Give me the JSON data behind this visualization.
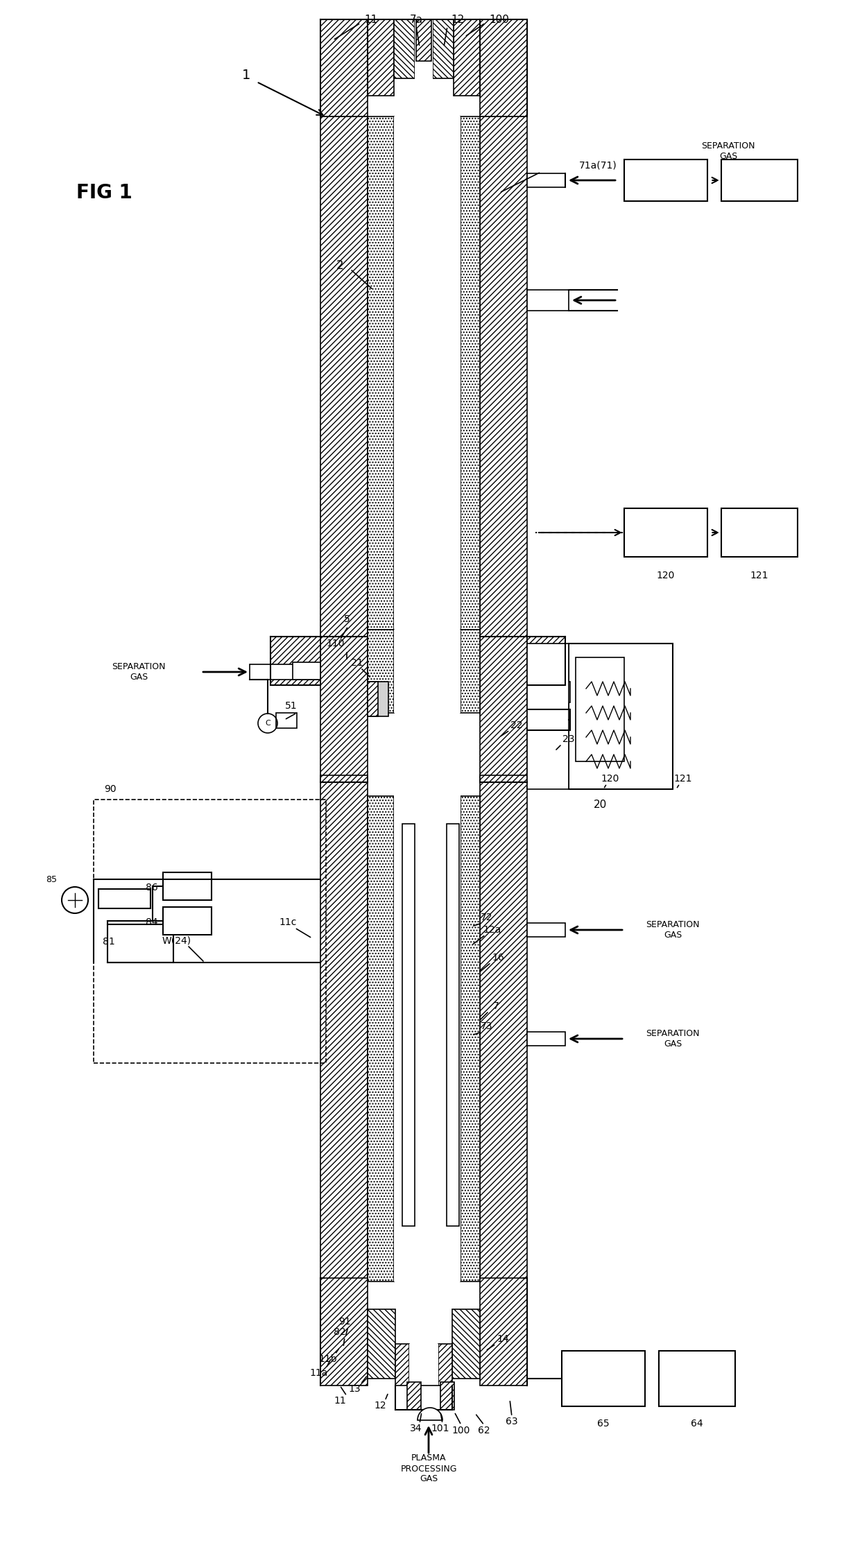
{
  "bg_color": "#ffffff",
  "fig_label": "FIG 1",
  "labels": {
    "main": "1",
    "tube": "2",
    "outer_tube": "11",
    "outer_tube_a": "11a",
    "outer_tube_b": "11b",
    "outer_tube_c": "11c",
    "inner_tube": "12",
    "inner_tube_a": "12a",
    "nozzle_a": "7a",
    "nozzle": "7",
    "flange": "5",
    "seal_110": "110",
    "seal_21": "21",
    "seal_51": "51",
    "C_label": "C",
    "box_90": "90",
    "box_81": "81",
    "box_85": "85",
    "box_86": "86",
    "box_84": "84",
    "W_label": "W(24)",
    "box_91": "91",
    "box_82": "82",
    "box_13": "13",
    "box_34": "34",
    "label_101": "101",
    "label_100": "100",
    "label_62": "62",
    "label_63": "63",
    "label_64": "64",
    "label_65": "65",
    "label_14": "14",
    "label_73": "73",
    "label_72": "72",
    "label_16": "16",
    "label_7": "7",
    "label_22": "22",
    "label_23": "23",
    "label_120": "120",
    "label_121": "121",
    "label_20": "20",
    "label_71a": "71a(71)",
    "sep_gas": "SEPARATION\nGAS",
    "plasma_gas": "PLASMA\nPROCESSING\nGAS"
  }
}
